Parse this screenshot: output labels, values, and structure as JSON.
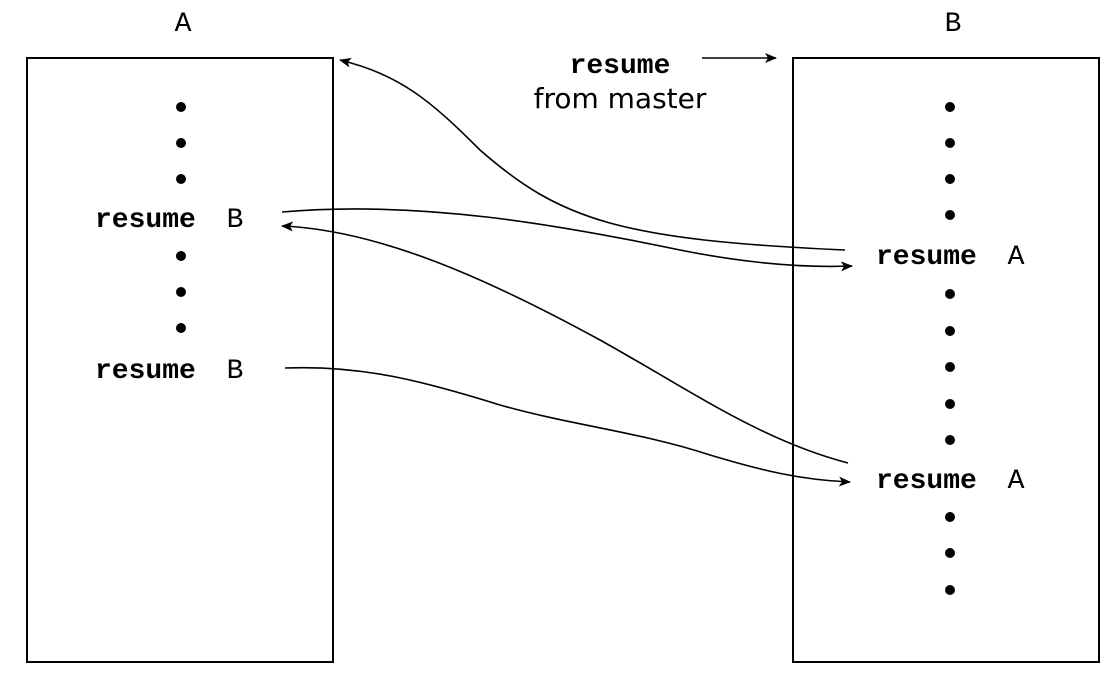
{
  "coroutine_a": {
    "name": "A",
    "statements": [
      {
        "keyword": "resume",
        "target": "B"
      },
      {
        "keyword": "resume",
        "target": "B"
      }
    ]
  },
  "coroutine_b": {
    "name": "B",
    "statements": [
      {
        "keyword": "resume",
        "target": "A"
      },
      {
        "keyword": "resume",
        "target": "A"
      }
    ]
  },
  "master_call": {
    "keyword": "resume",
    "source": "from master"
  },
  "colors": {
    "ink": "#000000",
    "background": "#ffffff"
  }
}
